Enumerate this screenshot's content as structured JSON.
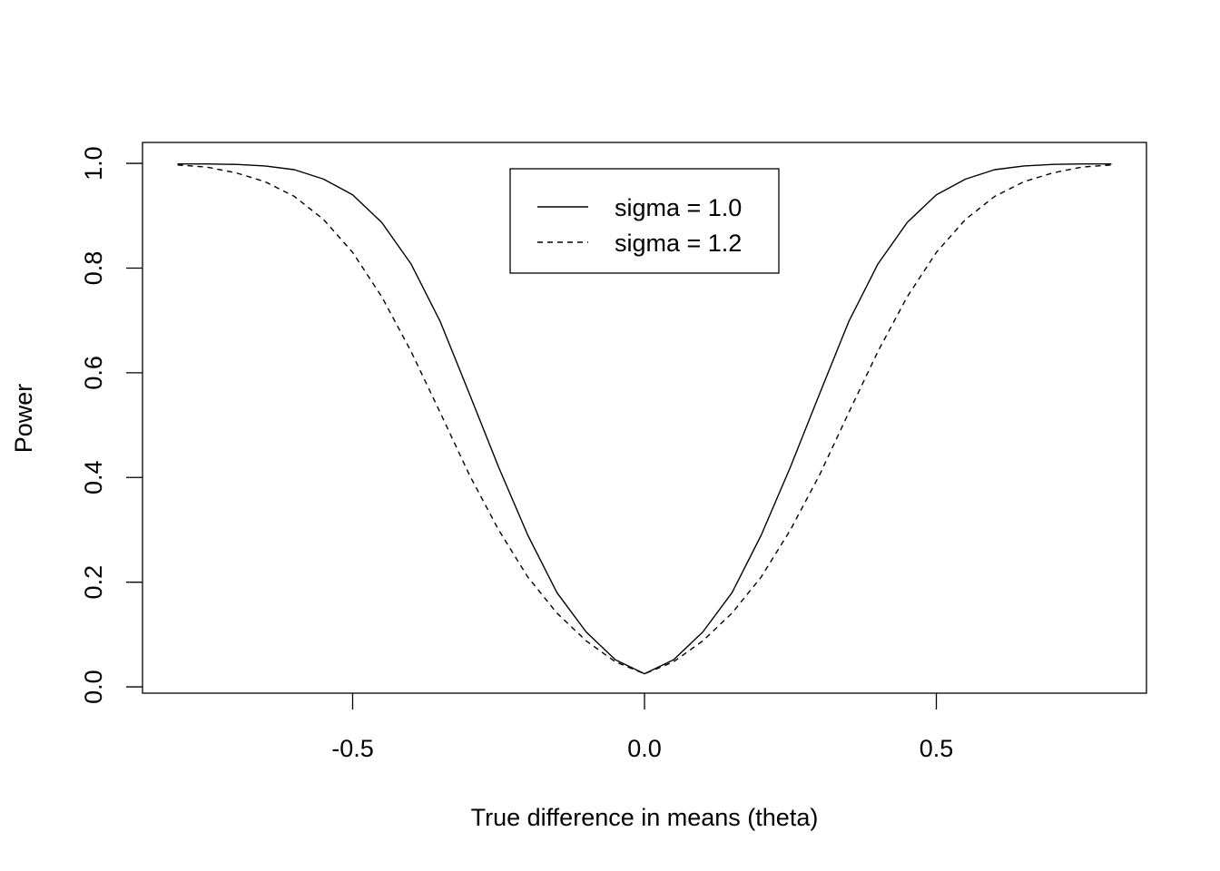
{
  "chart_data": {
    "type": "line",
    "title": "",
    "xlabel": "True difference in means (theta)",
    "ylabel": "Power",
    "xlim": [
      -0.86,
      0.86
    ],
    "ylim": [
      -0.012,
      1.04
    ],
    "xticks": [
      -0.5,
      0.0,
      0.5
    ],
    "xtick_labels": [
      "-0.5",
      "0.0",
      "0.5"
    ],
    "yticks": [
      0.0,
      0.2,
      0.4,
      0.6,
      0.8,
      1.0
    ],
    "ytick_labels": [
      "0.0",
      "0.2",
      "0.4",
      "0.6",
      "0.8",
      "1.0"
    ],
    "grid": false,
    "legend_position": "top-center",
    "x": [
      -0.8,
      -0.75,
      -0.7,
      -0.65,
      -0.6,
      -0.55,
      -0.5,
      -0.45,
      -0.4,
      -0.35,
      -0.3,
      -0.25,
      -0.2,
      -0.15,
      -0.1,
      -0.05,
      0.0,
      0.05,
      0.1,
      0.15,
      0.2,
      0.25,
      0.3,
      0.35,
      0.4,
      0.45,
      0.5,
      0.55,
      0.6,
      0.65,
      0.7,
      0.75,
      0.8
    ],
    "series": [
      {
        "name": "sigma = 1.0",
        "line_style": "solid",
        "values": [
          0.999,
          0.999,
          0.998,
          0.995,
          0.988,
          0.97,
          0.94,
          0.887,
          0.808,
          0.698,
          0.56,
          0.42,
          0.29,
          0.18,
          0.105,
          0.052,
          0.025,
          0.052,
          0.105,
          0.18,
          0.29,
          0.42,
          0.56,
          0.698,
          0.808,
          0.887,
          0.94,
          0.97,
          0.988,
          0.995,
          0.998,
          0.999,
          0.999
        ]
      },
      {
        "name": "sigma = 1.2",
        "line_style": "dashed",
        "values": [
          0.997,
          0.993,
          0.982,
          0.965,
          0.937,
          0.893,
          0.83,
          0.745,
          0.641,
          0.524,
          0.405,
          0.3,
          0.21,
          0.141,
          0.088,
          0.048,
          0.025,
          0.048,
          0.088,
          0.141,
          0.21,
          0.3,
          0.405,
          0.524,
          0.641,
          0.745,
          0.83,
          0.893,
          0.937,
          0.965,
          0.982,
          0.993,
          0.997
        ]
      }
    ]
  }
}
